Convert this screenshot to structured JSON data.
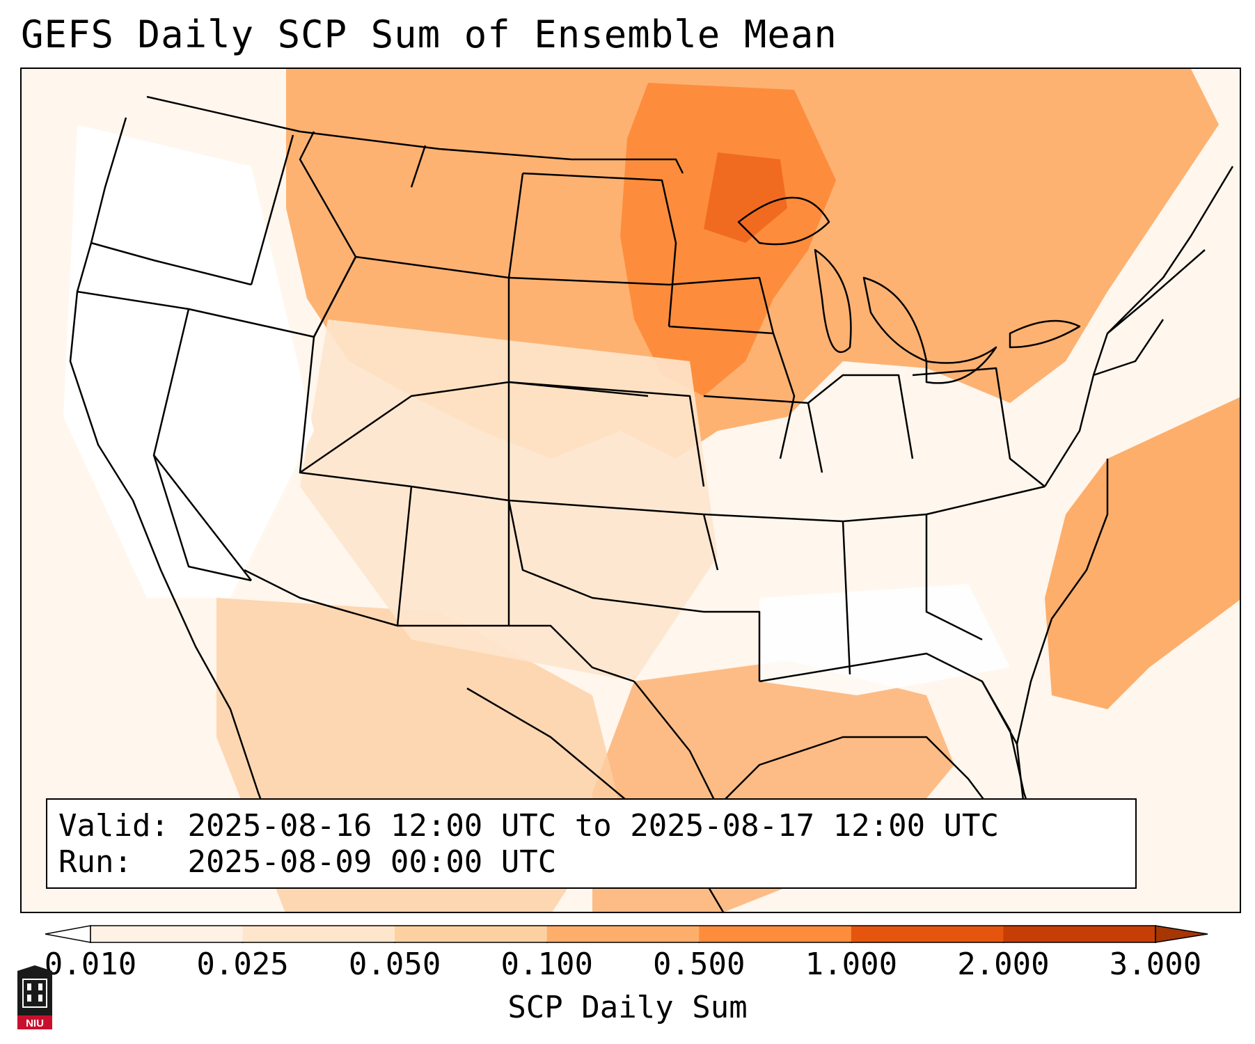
{
  "title": "GEFS Daily SCP Sum of Ensemble Mean",
  "info": {
    "valid_label": "Valid:",
    "valid_value": "2025-08-16 12:00 UTC to 2025-08-17 12:00 UTC",
    "run_label": "Run:",
    "run_value": "2025-08-09 00:00 UTC"
  },
  "colorbar": {
    "label": "SCP Daily Sum",
    "ticks": [
      "0.010",
      "0.025",
      "0.050",
      "0.100",
      "0.500",
      "1.000",
      "2.000",
      "3.000"
    ],
    "colors": [
      "#fff1e3",
      "#fee6cc",
      "#fdd0a2",
      "#fdae6b",
      "#fd8d3c",
      "#e6550d",
      "#c63d05",
      "#a63603"
    ],
    "under_color": "#ffffff",
    "over_color": "#a63603"
  },
  "logo": {
    "text": "NIU",
    "color": "#c8102e"
  },
  "map": {
    "region": "Continental United States",
    "land_color": "#ffffff",
    "border_color": "#000000"
  }
}
